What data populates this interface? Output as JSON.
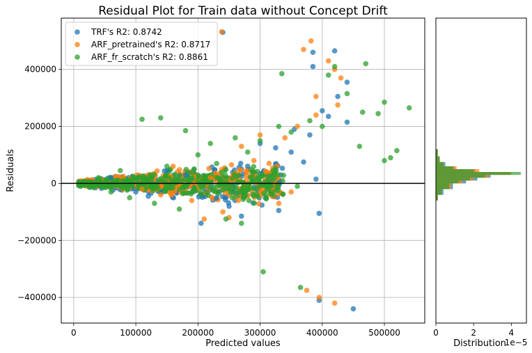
{
  "chart_data": [
    {
      "type": "scatter",
      "title": "Residual Plot for Train data without Concept Drift",
      "xlabel": "Predicted values",
      "ylabel": "Residuals",
      "xlim": [
        -20000,
        565000
      ],
      "ylim": [
        -490000,
        580000
      ],
      "xticks": [
        0,
        100000,
        200000,
        300000,
        400000,
        500000
      ],
      "xtick_labels": [
        "0",
        "100000",
        "200000",
        "300000",
        "400000",
        "500000"
      ],
      "yticks": [
        -400000,
        -200000,
        0,
        200000,
        400000
      ],
      "ytick_labels": [
        "−400000",
        "−200000",
        "0",
        "200000",
        "400000"
      ],
      "grid": true,
      "legend_position": "top-left",
      "zero_line": 0,
      "series": [
        {
          "name": "TRF's R2: 0.8742",
          "color": "#1f77b4",
          "points": [
            [
              240000,
              530000
            ],
            [
              385000,
              460000
            ],
            [
              420000,
              465000
            ],
            [
              440000,
              355000
            ],
            [
              385000,
              410000
            ],
            [
              400000,
              255000
            ],
            [
              425000,
              305000
            ],
            [
              440000,
              215000
            ],
            [
              410000,
              235000
            ],
            [
              355000,
              190000
            ],
            [
              380000,
              170000
            ],
            [
              325000,
              125000
            ],
            [
              350000,
              110000
            ],
            [
              300000,
              140000
            ],
            [
              395000,
              -105000
            ],
            [
              450000,
              -440000
            ],
            [
              395000,
              -410000
            ],
            [
              205000,
              -140000
            ],
            [
              270000,
              -115000
            ],
            [
              330000,
              -95000
            ],
            [
              250000,
              -80000
            ],
            [
              370000,
              75000
            ],
            [
              390000,
              15000
            ],
            [
              120000,
              -45000
            ],
            [
              60000,
              20000
            ],
            [
              180000,
              30000
            ],
            [
              230000,
              -50000
            ],
            [
              150000,
              45000
            ],
            [
              100000,
              -30000
            ],
            [
              280000,
              60000
            ]
          ]
        },
        {
          "name": "ARF_pretrained's R2: 0.8717",
          "color": "#ff7f0e",
          "points": [
            [
              238000,
              532000
            ],
            [
              382000,
              500000
            ],
            [
              370000,
              470000
            ],
            [
              410000,
              430000
            ],
            [
              390000,
              305000
            ],
            [
              420000,
              400000
            ],
            [
              430000,
              370000
            ],
            [
              425000,
              275000
            ],
            [
              390000,
              240000
            ],
            [
              360000,
              200000
            ],
            [
              340000,
              160000
            ],
            [
              300000,
              170000
            ],
            [
              270000,
              130000
            ],
            [
              420000,
              -420000
            ],
            [
              375000,
              -375000
            ],
            [
              395000,
              -400000
            ],
            [
              210000,
              -125000
            ],
            [
              250000,
              -120000
            ],
            [
              240000,
              -100000
            ],
            [
              330000,
              -70000
            ],
            [
              290000,
              80000
            ],
            [
              310000,
              40000
            ],
            [
              140000,
              -40000
            ],
            [
              80000,
              25000
            ],
            [
              190000,
              -60000
            ],
            [
              160000,
              60000
            ],
            [
              110000,
              -20000
            ],
            [
              220000,
              20000
            ],
            [
              350000,
              -30000
            ],
            [
              265000,
              -60000
            ]
          ]
        },
        {
          "name": "ARF_fr_scratch's R2: 0.8861",
          "color": "#2ca02c",
          "points": [
            [
              470000,
              420000
            ],
            [
              420000,
              410000
            ],
            [
              410000,
              380000
            ],
            [
              335000,
              385000
            ],
            [
              440000,
              315000
            ],
            [
              490000,
              245000
            ],
            [
              500000,
              285000
            ],
            [
              540000,
              265000
            ],
            [
              465000,
              250000
            ],
            [
              400000,
              200000
            ],
            [
              380000,
              220000
            ],
            [
              350000,
              180000
            ],
            [
              330000,
              200000
            ],
            [
              300000,
              150000
            ],
            [
              260000,
              160000
            ],
            [
              220000,
              140000
            ],
            [
              200000,
              100000
            ],
            [
              180000,
              185000
            ],
            [
              140000,
              230000
            ],
            [
              110000,
              225000
            ],
            [
              520000,
              115000
            ],
            [
              510000,
              90000
            ],
            [
              500000,
              80000
            ],
            [
              460000,
              130000
            ],
            [
              305000,
              -310000
            ],
            [
              365000,
              -365000
            ],
            [
              270000,
              -140000
            ],
            [
              245000,
              -125000
            ],
            [
              170000,
              -90000
            ],
            [
              130000,
              -70000
            ],
            [
              90000,
              -50000
            ],
            [
              60000,
              -30000
            ],
            [
              40000,
              20000
            ],
            [
              75000,
              45000
            ],
            [
              150000,
              60000
            ],
            [
              230000,
              70000
            ],
            [
              280000,
              110000
            ],
            [
              320000,
              30000
            ],
            [
              360000,
              -10000
            ],
            [
              250000,
              -20000
            ]
          ]
        }
      ]
    },
    {
      "type": "bar",
      "orientation": "horizontal",
      "xlabel": "Distribution",
      "xlim": [
        0,
        4.8e-05
      ],
      "xticks": [
        0,
        2,
        4
      ],
      "xtick_labels": [
        "0",
        "2",
        "4"
      ],
      "x_offset_label": "1e−5",
      "ylim": [
        -490000,
        580000
      ],
      "bins": [
        {
          "y0": -60000,
          "y1": -40000,
          "values": [
            1e-06,
            1e-06,
            1e-06
          ]
        },
        {
          "y0": -40000,
          "y1": -20000,
          "values": [
            4e-06,
            3e-06,
            3e-06
          ]
        },
        {
          "y0": -20000,
          "y1": 0,
          "values": [
            9e-06,
            8e-06,
            7e-06
          ]
        },
        {
          "y0": 0,
          "y1": 10000,
          "values": [
            1.6e-05,
            1.4e-05,
            1.2e-05
          ]
        },
        {
          "y0": 10000,
          "y1": 20000,
          "values": [
            2.2e-05,
            2e-05,
            1.8e-05
          ]
        },
        {
          "y0": 20000,
          "y1": 30000,
          "values": [
            2.9e-05,
            2.8e-05,
            2.6e-05
          ]
        },
        {
          "y0": 30000,
          "y1": 40000,
          "values": [
            3.9e-05,
            4e-05,
            4.5e-05
          ]
        },
        {
          "y0": 40000,
          "y1": 50000,
          "values": [
            2.1e-05,
            2.3e-05,
            2e-05
          ]
        },
        {
          "y0": 50000,
          "y1": 60000,
          "values": [
            1e-05,
            1.1e-05,
            9e-06
          ]
        },
        {
          "y0": 60000,
          "y1": 75000,
          "values": [
            5e-06,
            4e-06,
            4e-06
          ]
        },
        {
          "y0": 75000,
          "y1": 95000,
          "values": [
            2e-06,
            2e-06,
            2e-06
          ]
        },
        {
          "y0": 95000,
          "y1": 120000,
          "values": [
            1e-06,
            1e-06,
            1e-06
          ]
        }
      ]
    }
  ]
}
